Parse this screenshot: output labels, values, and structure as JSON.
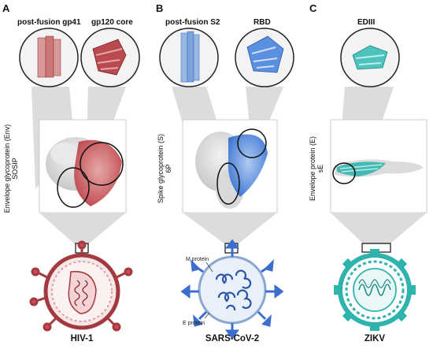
{
  "panels": [
    {
      "letter": "A",
      "zoom_labels": [
        "post-fusion gp41",
        "gp120 core"
      ],
      "protein_label_line1": "Envelope glycoprotein (Env)",
      "protein_label_line2": "SOSIP",
      "virus_name": "HIV-1",
      "color": "#b03035"
    },
    {
      "letter": "B",
      "zoom_labels": [
        "post-fusion S2",
        "RBD"
      ],
      "protein_label_line1": "Spike glycoprotein (S)",
      "protein_label_line2": "6P",
      "virus_name": "SARS-CoV-2",
      "callouts": [
        "M protein",
        "E protein"
      ],
      "color": "#3a6fcf"
    },
    {
      "letter": "C",
      "zoom_labels": [
        "EDIII"
      ],
      "protein_label_line1": "Envelope protein (E)",
      "protein_label_line2": "sE",
      "virus_name": "ZIKV",
      "color": "#2eb3ad"
    }
  ]
}
